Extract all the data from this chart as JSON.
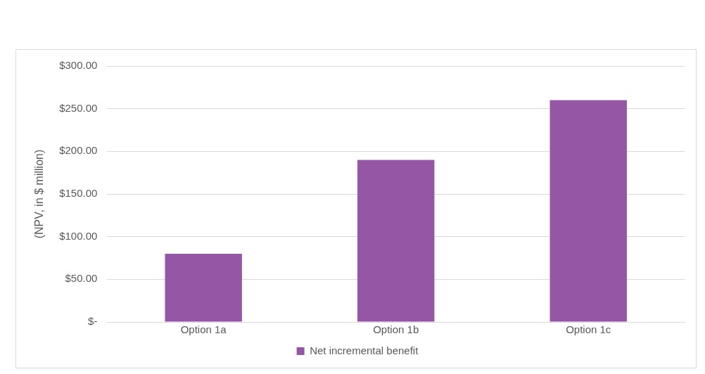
{
  "chart_data": {
    "type": "bar",
    "ylabel": "(NPV, in $ million)",
    "categories": [
      "Option 1a",
      "Option 1b",
      "Option 1c"
    ],
    "series": [
      {
        "name": "Net incremental benefit",
        "color": "#9656a6",
        "values": [
          80,
          190,
          260
        ]
      }
    ],
    "ylim": [
      0,
      300
    ],
    "yticks": [
      {
        "value": 0,
        "label": "$-"
      },
      {
        "value": 50,
        "label": "$50.00"
      },
      {
        "value": 100,
        "label": "$100.00"
      },
      {
        "value": 150,
        "label": "$150.00"
      },
      {
        "value": 200,
        "label": "$200.00"
      },
      {
        "value": 250,
        "label": "$250.00"
      },
      {
        "value": 300,
        "label": "$300.00"
      }
    ],
    "grid": "y",
    "legend": "bottom"
  }
}
